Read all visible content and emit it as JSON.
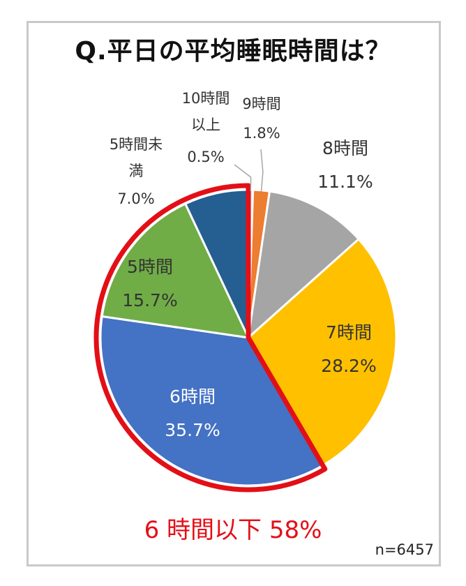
{
  "title": "Q.平日の平均睡眠時間は？",
  "chart_data": {
    "type": "pie",
    "title": "Q.平日の平均睡眠時間は？",
    "slices": [
      {
        "name": "10時間以上",
        "value": 0.5,
        "label": "0.5%",
        "color": "#d9e3f1"
      },
      {
        "name": "9時間",
        "value": 1.8,
        "label": "1.8%",
        "color": "#ed7d31"
      },
      {
        "name": "8時間",
        "value": 11.1,
        "label": "11.1%",
        "color": "#a5a5a5"
      },
      {
        "name": "7時間",
        "value": 28.2,
        "label": "28.2%",
        "color": "#ffc000"
      },
      {
        "name": "6時間",
        "value": 35.7,
        "label": "35.7%",
        "color": "#4472c4"
      },
      {
        "name": "5時間",
        "value": 15.7,
        "label": "15.7%",
        "color": "#70ad47"
      },
      {
        "name": "5時間未満",
        "value": 7.0,
        "label": "7.0%",
        "color": "#255e91"
      }
    ],
    "highlight": {
      "slices": [
        "6時間",
        "5時間",
        "5時間未満"
      ],
      "color": "#e30f17"
    },
    "label_lines": {
      "10h_1": "10時間",
      "10h_2": "以上",
      "u5_1": "5時間未",
      "u5_2": "満"
    }
  },
  "summary": "6 時間以下 58%",
  "sample_size": "n=6457"
}
